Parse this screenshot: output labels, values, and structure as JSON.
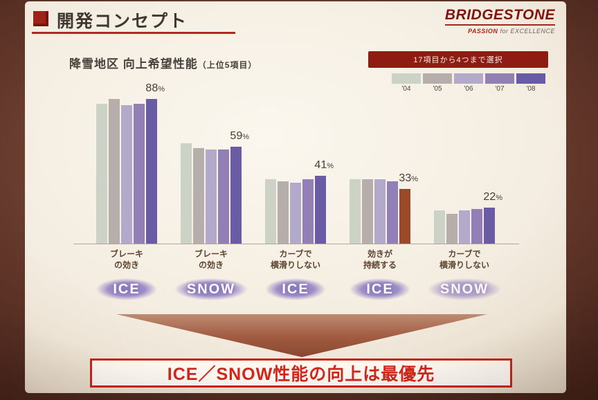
{
  "header": {
    "title": "開発コンセプト",
    "brand": "BRIDGESTONE",
    "tagline_passion": "PASSION",
    "tagline_for": "for",
    "tagline_excellence": "EXCELLENCE"
  },
  "chart": {
    "title": "降雪地区 向上希望性能",
    "title_suffix": "（上位5項目）",
    "legend": {
      "note": "17項目から4つまで選択",
      "years": [
        "'04",
        "'05",
        "'06",
        "'07",
        "'08"
      ],
      "colors": [
        "#ccd3c6",
        "#b6aeaa",
        "#b2a9cb",
        "#927fb5",
        "#6a5ba6"
      ]
    },
    "groups": [
      {
        "label_line1": "ブレーキ",
        "label_line2": "の効き",
        "badge": "ICE",
        "pct_label": "88%",
        "values": [
          85,
          88,
          84,
          85,
          88
        ]
      },
      {
        "label_line1": "ブレーキ",
        "label_line2": "の効き",
        "badge": "SNOW",
        "pct_label": "59%",
        "values": [
          61,
          58,
          57,
          57,
          59
        ]
      },
      {
        "label_line1": "カーブで",
        "label_line2": "横滑りしない",
        "badge": "ICE",
        "pct_label": "41%",
        "values": [
          39,
          38,
          37,
          39,
          41
        ]
      },
      {
        "label_line1": "効きが",
        "label_line2": "持続する",
        "badge": "ICE",
        "pct_label": "33%",
        "values": [
          39,
          39,
          39,
          38,
          33
        ],
        "bar_colors": [
          null,
          null,
          null,
          null,
          "#9a4a28"
        ]
      },
      {
        "label_line1": "カーブで",
        "label_line2": "横滑りしない",
        "badge": "SNOW",
        "pct_label": "22%",
        "values": [
          20,
          18,
          20,
          21,
          22
        ],
        "muted": true
      }
    ]
  },
  "chart_data": {
    "type": "bar",
    "title": "降雪地区 向上希望性能（上位5項目）",
    "categories": [
      "ブレーキの効き（ICE）",
      "ブレーキの効き（SNOW）",
      "カーブで横滑りしない（ICE）",
      "効きが持続する（ICE）",
      "カーブで横滑りしない（SNOW）"
    ],
    "series": [
      {
        "name": "'04",
        "values": [
          85,
          61,
          39,
          39,
          20
        ]
      },
      {
        "name": "'05",
        "values": [
          88,
          58,
          38,
          39,
          18
        ]
      },
      {
        "name": "'06",
        "values": [
          84,
          57,
          37,
          39,
          20
        ]
      },
      {
        "name": "'07",
        "values": [
          85,
          57,
          39,
          38,
          21
        ]
      },
      {
        "name": "'08",
        "values": [
          88,
          59,
          41,
          33,
          22
        ]
      }
    ],
    "data_labels": [
      "88%",
      "59%",
      "41%",
      "33%",
      "22%"
    ],
    "xlabel": "",
    "ylabel": "",
    "ylim": [
      0,
      100
    ],
    "grid": false,
    "legend_note": "17項目から4つまで選択",
    "legend_position": "top-right"
  },
  "footer": {
    "banner": "ICE／SNOW性能の向上は最優先"
  }
}
